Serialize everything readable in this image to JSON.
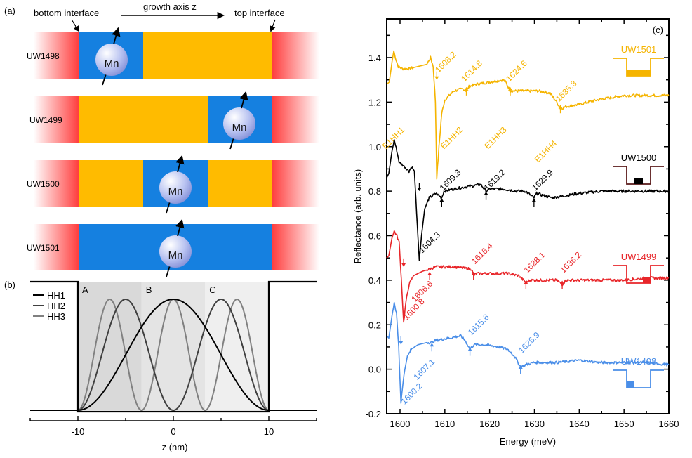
{
  "figure": {
    "panel_a": {
      "label": "(a)",
      "header": {
        "bottom_interface": "bottom interface",
        "growth_axis": "growth axis z",
        "top_interface": "top interface"
      },
      "colors": {
        "barrier": "#ff3b3b",
        "well": "#ffbb00",
        "doped": "#1580e0",
        "spin": "#b8c2f0"
      },
      "spin_label": "Mn",
      "samples": [
        {
          "name": "UW1498",
          "doped_region": "A",
          "segments": [
            "doped",
            "well",
            "well"
          ]
        },
        {
          "name": "UW1499",
          "doped_region": "C",
          "segments": [
            "well",
            "well",
            "doped"
          ]
        },
        {
          "name": "UW1500",
          "doped_region": "B",
          "segments": [
            "well",
            "doped",
            "well"
          ]
        },
        {
          "name": "UW1501",
          "doped_region": "all",
          "segments": [
            "doped",
            "doped",
            "doped"
          ]
        }
      ]
    },
    "panel_b": {
      "label": "(b)"
    }
  },
  "chart_data": [
    {
      "panel": "(b)",
      "type": "line",
      "title": "",
      "xlabel": "z (nm)",
      "ylabel": "",
      "xlim": [
        -15,
        15
      ],
      "xticks": [
        "-10",
        "0",
        "10"
      ],
      "well_width_nm": 20,
      "regions": [
        {
          "label": "A",
          "range": [
            -10,
            -3.33
          ],
          "shade": "#d9d9d9"
        },
        {
          "label": "B",
          "range": [
            -3.33,
            3.33
          ],
          "shade": "#e4e4e4"
        },
        {
          "label": "C",
          "range": [
            3.33,
            10
          ],
          "shade": "#efefef"
        }
      ],
      "potential": {
        "barrier_left": [
          -15,
          -10
        ],
        "barrier_right": [
          10,
          15
        ],
        "color": "#000000"
      },
      "series": [
        {
          "name": "HH1",
          "n": 1,
          "color": "#000000"
        },
        {
          "name": "HH2",
          "n": 2,
          "color": "#404040"
        },
        {
          "name": "HH3",
          "n": 3,
          "color": "#808080"
        }
      ],
      "legend": "top-left"
    },
    {
      "panel": "(c)",
      "type": "line",
      "title": "",
      "xlabel": "Energy (meV)",
      "ylabel": "Reflectance (arb. units)",
      "xlim": [
        1597,
        1660
      ],
      "ylim": [
        -0.2,
        1.5
      ],
      "xticks": [
        1600,
        1610,
        1620,
        1630,
        1640,
        1650,
        1660
      ],
      "yticks": [
        "-0.2",
        "0.0",
        "0.2",
        "0.4",
        "0.6",
        "0.8",
        "1.0",
        "1.2",
        "1.4"
      ],
      "series": [
        {
          "name": "UW1501",
          "color": "#f5b400",
          "inset_fill": "full",
          "points": [
            [
              1597,
              1.28
            ],
            [
              1597.6,
              1.29
            ],
            [
              1598.2,
              1.38
            ],
            [
              1598.6,
              1.43
            ],
            [
              1599.1,
              1.39
            ],
            [
              1599.6,
              1.36
            ],
            [
              1600.5,
              1.35
            ],
            [
              1602,
              1.35
            ],
            [
              1604,
              1.36
            ],
            [
              1606,
              1.37
            ],
            [
              1606.8,
              1.4
            ],
            [
              1607.4,
              1.36
            ],
            [
              1607.9,
              1.2
            ],
            [
              1608.2,
              0.86
            ],
            [
              1608.7,
              1.0
            ],
            [
              1609.3,
              1.15
            ],
            [
              1610,
              1.21
            ],
            [
              1612,
              1.25
            ],
            [
              1614,
              1.26
            ],
            [
              1614.8,
              1.25
            ],
            [
              1615.4,
              1.27
            ],
            [
              1617,
              1.28
            ],
            [
              1620,
              1.29
            ],
            [
              1623,
              1.3
            ],
            [
              1623.6,
              1.29
            ],
            [
              1624.6,
              1.25
            ],
            [
              1625.5,
              1.25
            ],
            [
              1628,
              1.25
            ],
            [
              1631,
              1.25
            ],
            [
              1633.5,
              1.24
            ],
            [
              1635,
              1.2
            ],
            [
              1635.8,
              1.17
            ],
            [
              1637,
              1.18
            ],
            [
              1640,
              1.19
            ],
            [
              1642,
              1.2
            ],
            [
              1644,
              1.21
            ],
            [
              1647,
              1.22
            ],
            [
              1650,
              1.23
            ],
            [
              1654,
              1.23
            ],
            [
              1660,
              1.23
            ]
          ],
          "annotations": [
            {
              "value": "1608.2",
              "x": 1608.2,
              "y": 1.3,
              "dir": "down"
            },
            {
              "value": "1614.8",
              "x": 1614.8,
              "y": 1.23,
              "dir": "up"
            },
            {
              "value": "1624.6",
              "x": 1624.6,
              "y": 1.23,
              "dir": "up"
            },
            {
              "value": "1635.8",
              "x": 1635.8,
              "y": 1.15,
              "dir": "up"
            }
          ],
          "transition_labels": [
            {
              "label": "E1HH1",
              "x": 1601.5,
              "y": 1.05
            },
            {
              "label": "E1HH2",
              "x": 1614.5,
              "y": 1.05
            },
            {
              "label": "E1HH3",
              "x": 1624.3,
              "y": 1.05
            },
            {
              "label": "E1HH4",
              "x": 1635.5,
              "y": 0.99
            }
          ]
        },
        {
          "name": "UW1500",
          "color": "#000000",
          "inset_fill": "center",
          "points": [
            [
              1597,
              0.86
            ],
            [
              1597.5,
              0.88
            ],
            [
              1598.2,
              0.98
            ],
            [
              1598.7,
              1.03
            ],
            [
              1599.3,
              0.98
            ],
            [
              1599.8,
              0.93
            ],
            [
              1601,
              0.91
            ],
            [
              1602,
              0.89
            ],
            [
              1602.6,
              0.91
            ],
            [
              1603.2,
              0.89
            ],
            [
              1603.7,
              0.7
            ],
            [
              1604.3,
              0.49
            ],
            [
              1604.8,
              0.6
            ],
            [
              1605.5,
              0.72
            ],
            [
              1606.5,
              0.77
            ],
            [
              1608,
              0.79
            ],
            [
              1609.3,
              0.77
            ],
            [
              1609.8,
              0.8
            ],
            [
              1612,
              0.81
            ],
            [
              1615,
              0.82
            ],
            [
              1618,
              0.83
            ],
            [
              1619.2,
              0.8
            ],
            [
              1620,
              0.81
            ],
            [
              1623,
              0.81
            ],
            [
              1626,
              0.8
            ],
            [
              1628,
              0.8
            ],
            [
              1629.9,
              0.77
            ],
            [
              1630.5,
              0.79
            ],
            [
              1632,
              0.78
            ],
            [
              1634,
              0.77
            ],
            [
              1637,
              0.78
            ],
            [
              1640,
              0.79
            ],
            [
              1645,
              0.8
            ],
            [
              1650,
              0.8
            ],
            [
              1660,
              0.8
            ]
          ],
          "annotations": [
            {
              "value": "1604.3",
              "x": 1604.3,
              "y": 0.8,
              "dir": "down",
              "label_below": true
            },
            {
              "value": "1609.3",
              "x": 1609.3,
              "y": 0.73,
              "dir": "up"
            },
            {
              "value": "1619.2",
              "x": 1619.2,
              "y": 0.76,
              "dir": "up"
            },
            {
              "value": "1629.9",
              "x": 1629.9,
              "y": 0.73,
              "dir": "up"
            }
          ]
        },
        {
          "name": "UW1499",
          "color": "#e8262a",
          "inset_fill": "right",
          "points": [
            [
              1597,
              0.5
            ],
            [
              1597.5,
              0.51
            ],
            [
              1598.2,
              0.59
            ],
            [
              1598.7,
              0.62
            ],
            [
              1599.3,
              0.6
            ],
            [
              1599.8,
              0.57
            ],
            [
              1600.3,
              0.4
            ],
            [
              1600.8,
              0.21
            ],
            [
              1601.3,
              0.3
            ],
            [
              1602,
              0.38
            ],
            [
              1603,
              0.42
            ],
            [
              1605,
              0.44
            ],
            [
              1606.6,
              0.45
            ],
            [
              1608,
              0.46
            ],
            [
              1612,
              0.46
            ],
            [
              1616,
              0.45
            ],
            [
              1616.4,
              0.42
            ],
            [
              1617,
              0.43
            ],
            [
              1620,
              0.43
            ],
            [
              1624,
              0.43
            ],
            [
              1626.5,
              0.42
            ],
            [
              1628.1,
              0.39
            ],
            [
              1629,
              0.4
            ],
            [
              1632,
              0.4
            ],
            [
              1635,
              0.4
            ],
            [
              1636.2,
              0.38
            ],
            [
              1637,
              0.4
            ],
            [
              1640,
              0.4
            ],
            [
              1645,
              0.4
            ],
            [
              1650,
              0.4
            ],
            [
              1655,
              0.41
            ],
            [
              1660,
              0.41
            ]
          ],
          "annotations": [
            {
              "value": "1600.8",
              "x": 1600.8,
              "y": 0.46,
              "dir": "down",
              "label_below": true
            },
            {
              "value": "1606.6",
              "x": 1606.6,
              "y": 0.4,
              "dir": "up",
              "label_below": true
            },
            {
              "value": "1616.4",
              "x": 1616.4,
              "y": 0.4,
              "dir": "up"
            },
            {
              "value": "1628.1",
              "x": 1628.1,
              "y": 0.36,
              "dir": "up"
            },
            {
              "value": "1636.2",
              "x": 1636.2,
              "y": 0.36,
              "dir": "up"
            }
          ]
        },
        {
          "name": "UW1498",
          "color": "#4a8ee8",
          "inset_fill": "left",
          "points": [
            [
              1597,
              0.15
            ],
            [
              1597.5,
              0.14
            ],
            [
              1598.2,
              0.24
            ],
            [
              1598.7,
              0.3
            ],
            [
              1599.2,
              0.25
            ],
            [
              1599.7,
              0.1
            ],
            [
              1600.2,
              -0.15
            ],
            [
              1600.7,
              -0.05
            ],
            [
              1601.5,
              0.05
            ],
            [
              1602.5,
              0.09
            ],
            [
              1604,
              0.11
            ],
            [
              1606,
              0.12
            ],
            [
              1607.1,
              0.12
            ],
            [
              1608,
              0.13
            ],
            [
              1611,
              0.14
            ],
            [
              1613.5,
              0.15
            ],
            [
              1614.5,
              0.13
            ],
            [
              1615.6,
              0.09
            ],
            [
              1616.5,
              0.11
            ],
            [
              1619,
              0.11
            ],
            [
              1622,
              0.1
            ],
            [
              1624,
              0.09
            ],
            [
              1625.5,
              0.06
            ],
            [
              1626.9,
              0.01
            ],
            [
              1628,
              0.02
            ],
            [
              1630,
              0.03
            ],
            [
              1635,
              0.03
            ],
            [
              1640,
              0.04
            ],
            [
              1645,
              0.03
            ],
            [
              1650,
              0.03
            ],
            [
              1655,
              0.03
            ],
            [
              1660,
              0.02
            ]
          ],
          "annotations": [
            {
              "value": "1600.2",
              "x": 1600.2,
              "y": 0.11,
              "dir": "down",
              "label_below": true
            },
            {
              "value": "1607.1",
              "x": 1607.1,
              "y": 0.08,
              "dir": "up",
              "label_below": true
            },
            {
              "value": "1615.6",
              "x": 1615.6,
              "y": 0.06,
              "dir": "up"
            },
            {
              "value": "1626.9",
              "x": 1626.9,
              "y": -0.02,
              "dir": "up"
            }
          ]
        }
      ],
      "panel_label": "(c)"
    }
  ]
}
